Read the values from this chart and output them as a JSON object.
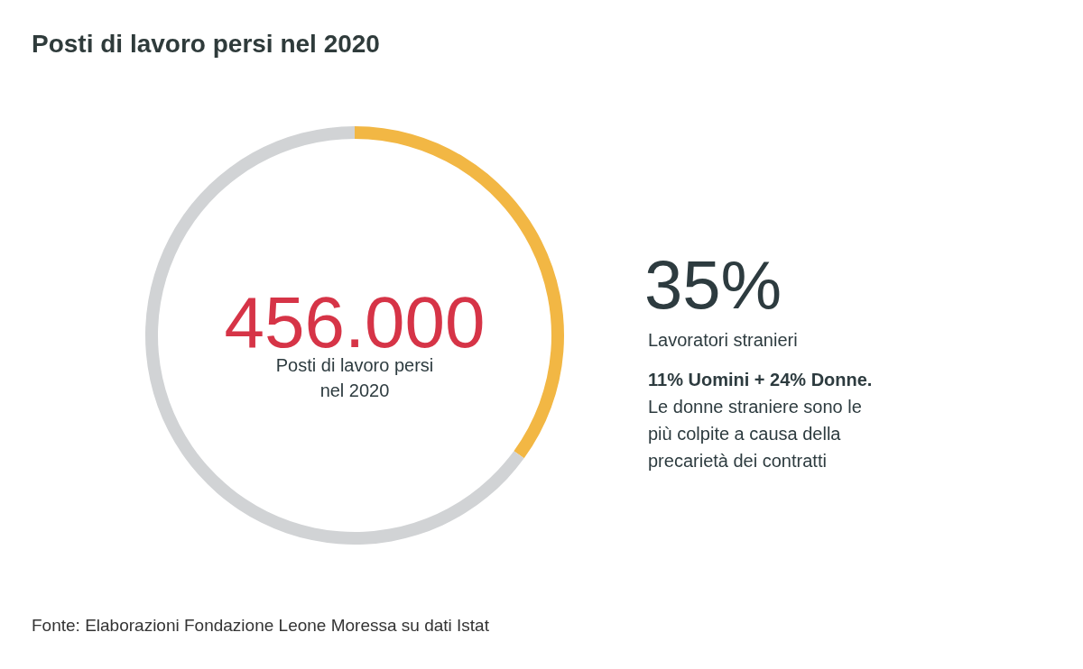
{
  "chart_data": {
    "type": "donut",
    "title": "Posti di lavoro persi nel 2020",
    "categories": [
      "Lavoratori stranieri",
      null
    ],
    "values": [
      35,
      65
    ],
    "colors": [
      "#f2b744",
      "#d1d3d5"
    ],
    "value_labels": [
      "35%",
      null
    ],
    "annotations": [
      "456.000",
      "Posti di lavoro persi nel 2020",
      "11% Uomini + 24% Donne.",
      "Le donne straniere sono le più colpite a causa della precarietà dei contratti",
      "Fonte: Elaborazioni Fondazione Leone Moressa su dati Istat"
    ]
  }
}
